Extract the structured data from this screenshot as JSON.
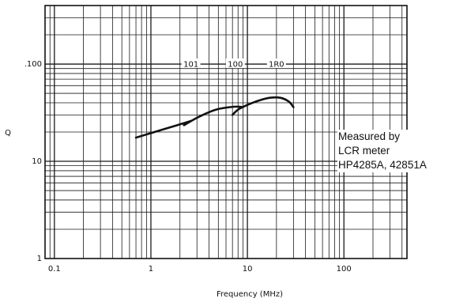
{
  "chart_data": {
    "type": "line",
    "x_scale": "log",
    "y_scale": "log",
    "xlim": [
      0.08,
      450
    ],
    "ylim": [
      1,
      400
    ],
    "xlabel": "Frequency (MHz)",
    "ylabel": "Q",
    "x_ticks": [
      {
        "value": 0.1,
        "label": "0.1"
      },
      {
        "value": 1,
        "label": "1"
      },
      {
        "value": 10,
        "label": "10"
      },
      {
        "value": 100,
        "label": "100"
      }
    ],
    "y_ticks": [
      {
        "value": 1,
        "label": "1"
      },
      {
        "value": 10,
        "label": "10"
      },
      {
        "value": 100,
        "label": ".100"
      }
    ],
    "grid": true,
    "series": [
      {
        "name": "101",
        "label_at": [
          2.6,
          100
        ],
        "points": [
          [
            0.7,
            17.5
          ],
          [
            1.0,
            19.5
          ],
          [
            1.5,
            22
          ],
          [
            2.0,
            24
          ],
          [
            2.6,
            26
          ]
        ]
      },
      {
        "name": "100",
        "label_at": [
          7.5,
          100
        ],
        "points": [
          [
            2.2,
            23.5
          ],
          [
            3.0,
            28
          ],
          [
            4.0,
            32
          ],
          [
            5.0,
            34.5
          ],
          [
            6.5,
            36
          ],
          [
            8.0,
            36.5
          ],
          [
            9.0,
            36
          ]
        ]
      },
      {
        "name": "1R0",
        "label_at": [
          20,
          100
        ],
        "points": [
          [
            7.0,
            30
          ],
          [
            8.0,
            34
          ],
          [
            10.0,
            38
          ],
          [
            13.0,
            42
          ],
          [
            17.0,
            45
          ],
          [
            22.0,
            45
          ],
          [
            27.0,
            41
          ],
          [
            30.0,
            36
          ]
        ]
      }
    ],
    "annotation": [
      "Measured by",
      "LCR meter",
      "HP4285A, 42851A"
    ]
  }
}
